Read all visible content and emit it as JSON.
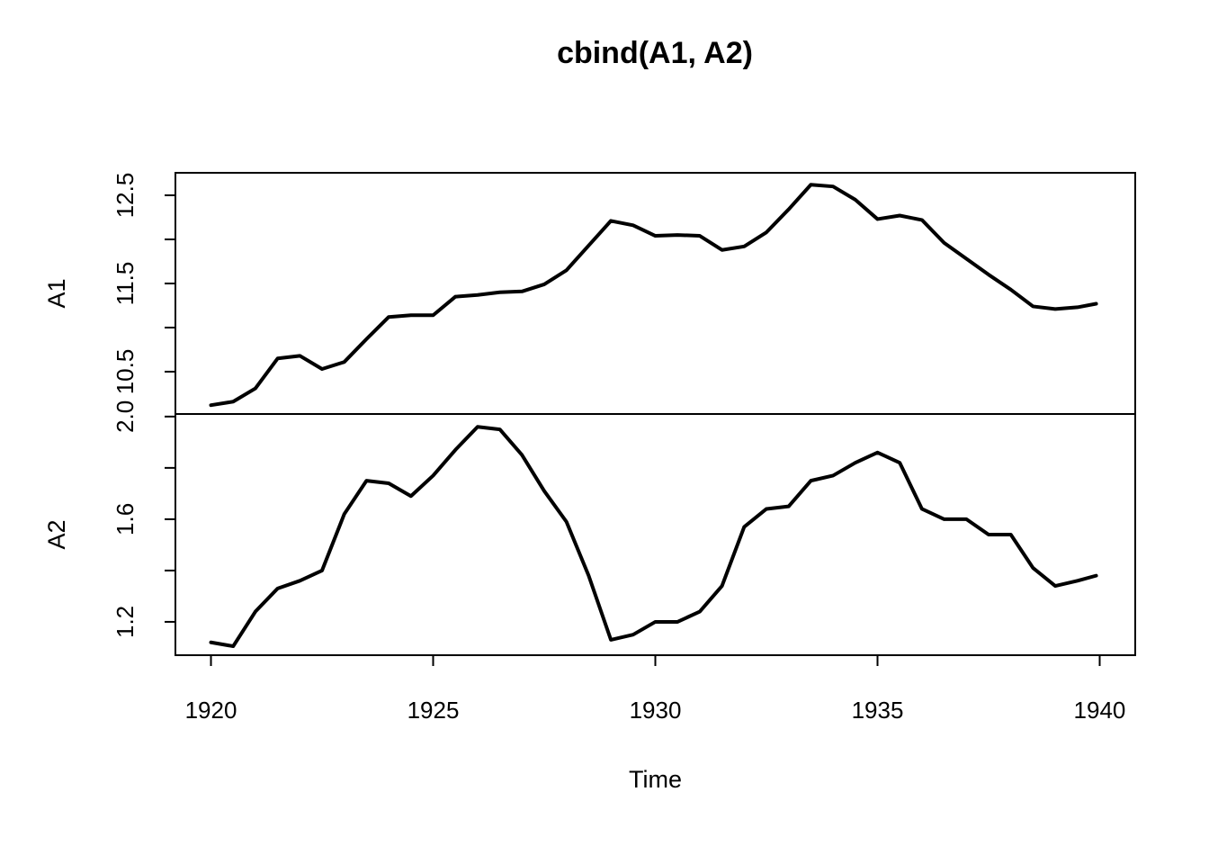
{
  "title": "cbind(A1, A2)",
  "chart_data": [
    {
      "type": "line",
      "ylabel": "A1",
      "color": "#000000",
      "x": [
        1920,
        1920.5,
        1921,
        1921.5,
        1922,
        1922.5,
        1923,
        1923.5,
        1924,
        1924.5,
        1925,
        1925.5,
        1926,
        1926.5,
        1927,
        1927.5,
        1928,
        1928.5,
        1929,
        1929.5,
        1930,
        1930.5,
        1931,
        1931.5,
        1932,
        1932.5,
        1933,
        1933.5,
        1934,
        1934.5,
        1935,
        1935.5,
        1936,
        1936.5,
        1937,
        1937.5,
        1938,
        1938.5,
        1939,
        1939.5,
        1939.92
      ],
      "values": [
        10.12,
        10.16,
        10.31,
        10.65,
        10.68,
        10.53,
        10.61,
        10.87,
        11.12,
        11.14,
        11.14,
        11.35,
        11.37,
        11.4,
        11.41,
        11.49,
        11.65,
        11.93,
        12.21,
        12.16,
        12.04,
        12.05,
        12.04,
        11.88,
        11.92,
        12.08,
        12.34,
        12.62,
        12.6,
        12.45,
        12.23,
        12.27,
        12.22,
        11.96,
        11.78,
        11.6,
        11.43,
        11.24,
        11.21,
        11.23,
        11.27
      ],
      "xlim": [
        1919.2,
        1940.8
      ],
      "ylim": [
        10.02,
        12.755
      ],
      "yticks": [
        10.5,
        {
          "value": 11,
          "label": null
        },
        11.5,
        {
          "value": 12,
          "label": null
        },
        12.5
      ]
    },
    {
      "type": "line",
      "ylabel": "A2",
      "xlabel": "Time",
      "color": "#000000",
      "x": [
        1920,
        1920.5,
        1921,
        1921.5,
        1922,
        1922.5,
        1923,
        1923.5,
        1924,
        1924.5,
        1925,
        1925.5,
        1926,
        1926.5,
        1927,
        1927.5,
        1928,
        1928.5,
        1929,
        1929.5,
        1930,
        1930.5,
        1931,
        1931.5,
        1932,
        1932.5,
        1933,
        1933.5,
        1934,
        1934.5,
        1935,
        1935.5,
        1936,
        1936.5,
        1937,
        1937.5,
        1938,
        1938.5,
        1939,
        1939.5,
        1939.92
      ],
      "values": [
        1.12,
        1.105,
        1.24,
        1.33,
        1.36,
        1.4,
        1.62,
        1.75,
        1.74,
        1.69,
        1.77,
        1.87,
        1.96,
        1.95,
        1.85,
        1.71,
        1.59,
        1.38,
        1.13,
        1.15,
        1.2,
        1.2,
        1.24,
        1.34,
        1.57,
        1.64,
        1.65,
        1.75,
        1.77,
        1.82,
        1.86,
        1.82,
        1.64,
        1.6,
        1.6,
        1.54,
        1.54,
        1.41,
        1.34,
        1.36,
        1.38
      ],
      "xlim": [
        1919.2,
        1940.8
      ],
      "ylim": [
        1.07,
        2.01
      ],
      "yticks": [
        1.2,
        {
          "value": 1.4,
          "label": null
        },
        1.6,
        {
          "value": 1.8,
          "label": null
        },
        {
          "value": 2,
          "label": "2.0"
        }
      ],
      "xticks": [
        1920,
        1925,
        1930,
        1935,
        1940
      ]
    }
  ]
}
